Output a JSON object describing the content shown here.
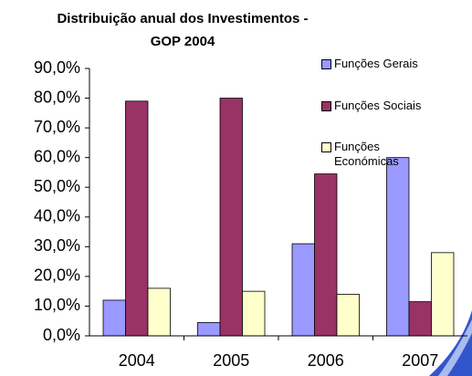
{
  "chart_data": {
    "type": "bar",
    "title": "Distribuição anual dos Investimentos -\nGOP 2004",
    "categories": [
      "2004",
      "2005",
      "2006",
      "2007"
    ],
    "series": [
      {
        "name": "Funções Gerais",
        "color": "#9999ff",
        "values": [
          12,
          4.5,
          31,
          60
        ]
      },
      {
        "name": "Funções Sociais",
        "color": "#993366",
        "values": [
          79,
          80,
          54.5,
          11.5
        ]
      },
      {
        "name": "Funções Económicas",
        "color": "#ffffcc",
        "values": [
          16,
          15,
          14,
          28
        ]
      }
    ],
    "ylim": [
      0,
      90
    ],
    "yticks": [
      {
        "value": 0,
        "label": "0,0%"
      },
      {
        "value": 10,
        "label": "10,0%"
      },
      {
        "value": 20,
        "label": "20,0%"
      },
      {
        "value": 30,
        "label": "30,0%"
      },
      {
        "value": 40,
        "label": "40,0%"
      },
      {
        "value": 50,
        "label": "50,0%"
      },
      {
        "value": 60,
        "label": "60,0%"
      },
      {
        "value": 70,
        "label": "70,0%"
      },
      {
        "value": 80,
        "label": "80,0%"
      },
      {
        "value": 90,
        "label": "90,0%"
      }
    ],
    "grid": false,
    "legend": "right"
  }
}
